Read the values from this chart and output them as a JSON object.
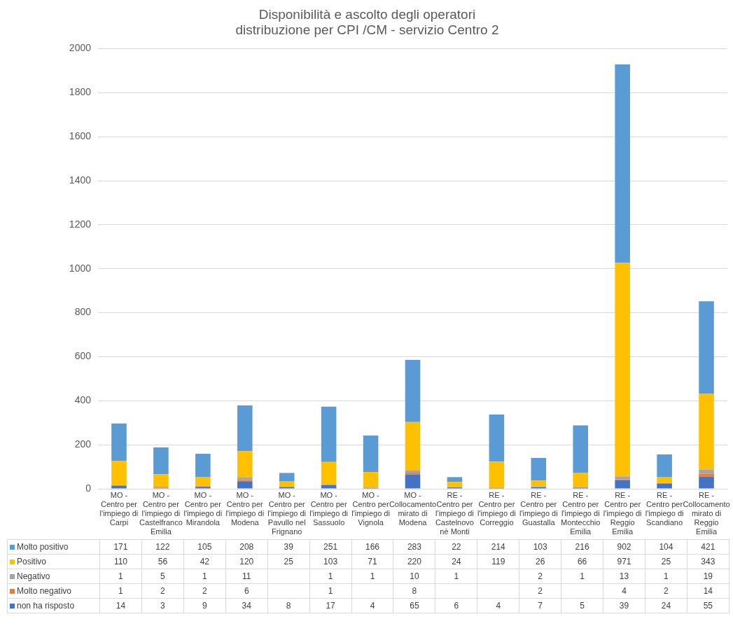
{
  "chart_data": {
    "type": "bar",
    "stacked": true,
    "title": "Disponibilità e ascolto degli operatori",
    "subtitle": "distribuzione per CPI /CM - servizio Centro 2",
    "categories": [
      "MO - Centro per l'impiego di Carpi",
      "MO - Centro per l'impiego di Castelfranco Emilia",
      "MO - Centro per l'impiego di Mirandola",
      "MO - Centro per l'impiego di Modena",
      "MO - Centro per l'impiego di Pavullo nel Frignano",
      "MO - Centro per l'impiego di Sassuolo",
      "MO - Centro per l'impiego di Vignola",
      "MO - Collocamento mirato di Modena",
      "RE - Centro per l'impiego di Castelnovo nè Monti",
      "RE - Centro per l'impiego di Correggio",
      "RE - Centro per l'impiego di Guastalla",
      "RE - Centro per l'impiego di Montecchio Emilia",
      "RE - Centro per l'impiego di Reggio Emilia",
      "RE - Centro per l'impiego di Scandiano",
      "RE - Collocamento mirato di Reggio Emilia"
    ],
    "series": [
      {
        "name": "non ha risposto",
        "color": "#4472c4",
        "values": [
          14,
          3,
          9,
          34,
          8,
          17,
          4,
          65,
          6,
          4,
          7,
          5,
          39,
          24,
          55
        ]
      },
      {
        "name": "Molto negativo",
        "color": "#ed7d31",
        "values": [
          1,
          2,
          2,
          6,
          null,
          1,
          null,
          8,
          null,
          null,
          2,
          null,
          4,
          2,
          14
        ]
      },
      {
        "name": "Negativo",
        "color": "#a5a5a5",
        "values": [
          1,
          5,
          1,
          11,
          null,
          1,
          1,
          10,
          1,
          null,
          2,
          1,
          13,
          1,
          19
        ]
      },
      {
        "name": "Positivo",
        "color": "#ffc000",
        "values": [
          110,
          56,
          42,
          120,
          25,
          103,
          71,
          220,
          24,
          119,
          26,
          66,
          971,
          25,
          343
        ]
      },
      {
        "name": "Molto positivo",
        "color": "#5b9bd5",
        "values": [
          171,
          122,
          105,
          208,
          39,
          251,
          166,
          283,
          22,
          214,
          103,
          216,
          902,
          104,
          421
        ]
      }
    ],
    "ylim": [
      0,
      2000
    ],
    "yticks": [
      0,
      200,
      400,
      600,
      800,
      1000,
      1200,
      1400,
      1600,
      1800,
      2000
    ],
    "grid": "y",
    "data_labels": true,
    "legend": "bottom"
  }
}
